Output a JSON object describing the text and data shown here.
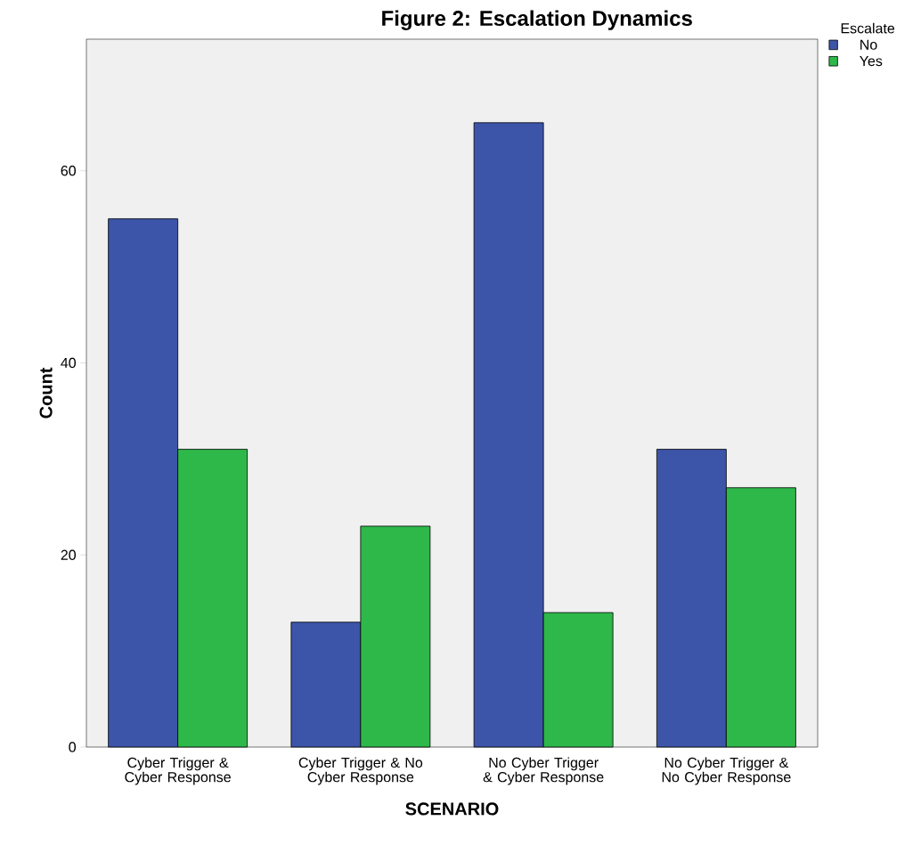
{
  "chart_data": {
    "type": "bar",
    "title": "Figure 2: Escalation Dynamics",
    "xlabel": "SCENARIO",
    "ylabel": "Count",
    "legend_title": "Escalate",
    "legend": "top right",
    "grid": false,
    "categories": [
      "Cyber Trigger & Cyber Response",
      "Cyber Trigger & No Cyber Response",
      "No Cyber Trigger & Cyber Response",
      "No Cyber Trigger & No Cyber Response"
    ],
    "series": [
      {
        "name": "No",
        "color": "#3d55a8",
        "values": [
          55,
          13,
          65,
          31
        ]
      },
      {
        "name": "Yes",
        "color": "#2eb84a",
        "values": [
          31,
          23,
          14,
          27
        ]
      }
    ],
    "ylim": [
      0,
      73.7
    ],
    "yticks": [
      0,
      20,
      40,
      60
    ]
  }
}
